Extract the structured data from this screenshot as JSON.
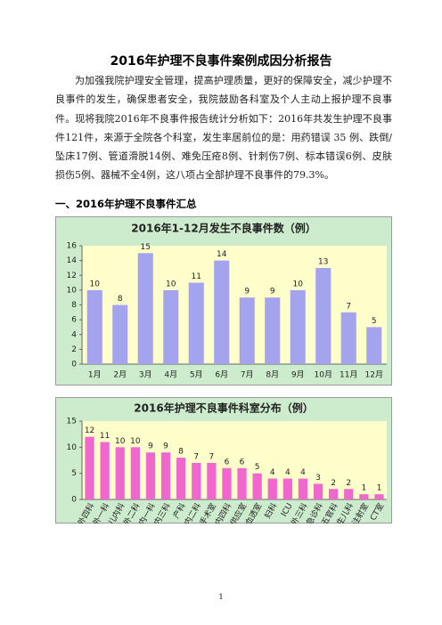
{
  "document": {
    "title": "2016年护理不良事件案例成因分析报告",
    "paragraph": "为加强我院护理安全管理，提高护理质量，更好的保障安全，减少护理不良事件的发生，确保患者安全，我院鼓励各科室及个人主动上报护理不良事件。现将我院2016年不良事件报告统计分析如下：2016年共发生护理不良事件121件，来源于全院各个科室，发生率居前位的是：用药错误 35 例、跌倒/坠床17例、管道滑脱14例、难免压疮8例、针刺伤7例、标本错误6例、皮肤损伤5例、器械不全4例，这八项占全部护理不良事件的79.3%。",
    "section_heading": "一、2016年护理不良事件汇总",
    "page_number": "1"
  },
  "chart_data": [
    {
      "type": "bar",
      "title": "2016年1-12月发生不良事件数（例）",
      "categories": [
        "1月",
        "2月",
        "3月",
        "4月",
        "5月",
        "6月",
        "7月",
        "8月",
        "9月",
        "10月",
        "11月",
        "12月"
      ],
      "values": [
        10,
        8,
        15,
        10,
        11,
        14,
        9,
        9,
        10,
        13,
        7,
        5
      ],
      "color": "#a4a4ee",
      "plot_background": "#ffffcc",
      "chart_background": "#cdeccd",
      "ylim": [
        0,
        16
      ],
      "yticks": [
        0,
        2,
        4,
        6,
        8,
        10,
        12,
        14,
        16
      ],
      "grid": false,
      "data_labels": true,
      "label_rotation": 0
    },
    {
      "type": "bar",
      "title": "2016年护理不良事件科室分布（例）",
      "categories": [
        "外四科",
        "外一科",
        "儿内科",
        "外二科",
        "内一科",
        "内三科",
        "产科",
        "内二科",
        "手术室",
        "内四科",
        "供应室",
        "血透室",
        "妇科",
        "ICU",
        "外三科",
        "急诊科",
        "五官科",
        "新生儿科",
        "注射室",
        "CT室"
      ],
      "values": [
        12,
        11,
        10,
        10,
        9,
        9,
        8,
        7,
        7,
        6,
        6,
        5,
        4,
        4,
        4,
        3,
        2,
        2,
        1,
        1
      ],
      "color": "#f266cf",
      "plot_background": "#ffffcc",
      "chart_background": "#cdeccd",
      "ylim": [
        0,
        15
      ],
      "yticks": [
        0,
        5,
        10,
        15
      ],
      "grid": false,
      "data_labels": true,
      "label_rotation": -60
    }
  ]
}
